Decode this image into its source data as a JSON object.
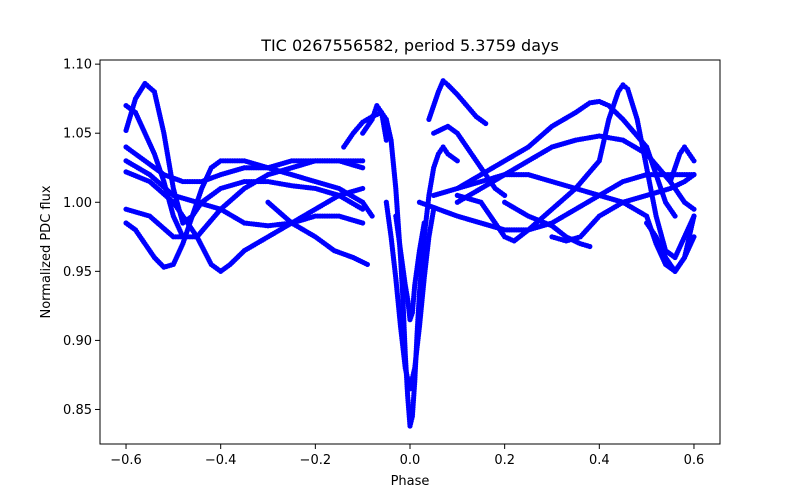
{
  "chart_data": {
    "type": "scatter",
    "title": "TIC 0267556582, period 5.3759 days",
    "xlabel": "Phase",
    "ylabel": "Normalized PDC flux",
    "xlim": [
      -0.655,
      0.655
    ],
    "ylim": [
      0.825,
      1.103
    ],
    "xticks": [
      -0.6,
      -0.4,
      -0.2,
      0.0,
      0.2,
      0.4,
      0.6
    ],
    "xtick_labels": [
      "−0.6",
      "−0.4",
      "−0.2",
      "0.0",
      "0.2",
      "0.4",
      "0.6"
    ],
    "yticks": [
      0.85,
      0.9,
      0.95,
      1.0,
      1.05,
      1.1
    ],
    "ytick_labels": [
      "0.85",
      "0.90",
      "0.95",
      "1.00",
      "1.05",
      "1.10"
    ],
    "grid": false,
    "marker_color": "#0000ff",
    "series": [
      {
        "values": [
          [
            -0.6,
            1.052
          ],
          [
            -0.58,
            1.075
          ],
          [
            -0.56,
            1.086
          ],
          [
            -0.54,
            1.08
          ],
          [
            -0.52,
            1.05
          ],
          [
            -0.5,
            1.01
          ],
          [
            -0.48,
            0.985
          ],
          [
            -0.46,
            0.99
          ],
          [
            -0.44,
            1.01
          ],
          [
            -0.42,
            1.025
          ],
          [
            -0.4,
            1.03
          ],
          [
            -0.35,
            1.03
          ],
          [
            -0.3,
            1.025
          ],
          [
            -0.25,
            1.02
          ],
          [
            -0.2,
            1.015
          ],
          [
            -0.15,
            1.01
          ],
          [
            -0.1,
            1.0
          ],
          [
            -0.08,
            0.99
          ]
        ]
      },
      {
        "values": [
          [
            -0.6,
            0.985
          ],
          [
            -0.58,
            0.98
          ],
          [
            -0.56,
            0.97
          ],
          [
            -0.54,
            0.96
          ],
          [
            -0.52,
            0.953
          ],
          [
            -0.5,
            0.955
          ],
          [
            -0.48,
            0.97
          ],
          [
            -0.46,
            0.99
          ],
          [
            -0.44,
            1.0
          ],
          [
            -0.42,
            1.005
          ],
          [
            -0.4,
            1.01
          ],
          [
            -0.35,
            1.015
          ],
          [
            -0.3,
            1.015
          ],
          [
            -0.25,
            1.012
          ],
          [
            -0.2,
            1.01
          ],
          [
            -0.15,
            1.005
          ],
          [
            -0.1,
            0.995
          ]
        ]
      },
      {
        "values": [
          [
            -0.6,
            1.022
          ],
          [
            -0.55,
            1.015
          ],
          [
            -0.5,
            1.0
          ],
          [
            -0.48,
            0.99
          ],
          [
            -0.45,
            0.975
          ],
          [
            -0.42,
            0.955
          ],
          [
            -0.4,
            0.95
          ],
          [
            -0.38,
            0.955
          ],
          [
            -0.35,
            0.965
          ],
          [
            -0.3,
            0.975
          ],
          [
            -0.25,
            0.985
          ],
          [
            -0.2,
            0.99
          ],
          [
            -0.15,
            0.99
          ],
          [
            -0.1,
            0.985
          ]
        ]
      },
      {
        "values": [
          [
            -0.6,
            1.03
          ],
          [
            -0.55,
            1.02
          ],
          [
            -0.5,
            1.005
          ],
          [
            -0.45,
            1.0
          ],
          [
            -0.4,
            0.995
          ],
          [
            -0.35,
            0.985
          ],
          [
            -0.3,
            0.983
          ],
          [
            -0.25,
            0.985
          ],
          [
            -0.2,
            0.995
          ],
          [
            -0.15,
            1.005
          ],
          [
            -0.1,
            1.01
          ]
        ]
      },
      {
        "values": [
          [
            -0.6,
            0.995
          ],
          [
            -0.55,
            0.99
          ],
          [
            -0.5,
            0.975
          ],
          [
            -0.45,
            0.975
          ],
          [
            -0.4,
            0.995
          ],
          [
            -0.35,
            1.01
          ],
          [
            -0.3,
            1.02
          ],
          [
            -0.25,
            1.025
          ],
          [
            -0.2,
            1.03
          ],
          [
            -0.15,
            1.03
          ],
          [
            -0.1,
            1.03
          ]
        ]
      },
      {
        "values": [
          [
            -0.6,
            1.07
          ],
          [
            -0.58,
            1.065
          ],
          [
            -0.56,
            1.05
          ],
          [
            -0.54,
            1.035
          ],
          [
            -0.52,
            1.015
          ],
          [
            -0.5,
            0.99
          ],
          [
            -0.48,
            0.975
          ]
        ]
      },
      {
        "values": [
          [
            -0.6,
            1.04
          ],
          [
            -0.56,
            1.03
          ],
          [
            -0.52,
            1.02
          ],
          [
            -0.48,
            1.015
          ],
          [
            -0.44,
            1.015
          ],
          [
            -0.4,
            1.02
          ],
          [
            -0.35,
            1.025
          ],
          [
            -0.3,
            1.025
          ],
          [
            -0.25,
            1.03
          ],
          [
            -0.2,
            1.03
          ],
          [
            -0.15,
            1.03
          ],
          [
            -0.1,
            1.025
          ]
        ]
      },
      {
        "values": [
          [
            -0.3,
            1.0
          ],
          [
            -0.25,
            0.985
          ],
          [
            -0.2,
            0.975
          ],
          [
            -0.16,
            0.965
          ],
          [
            -0.12,
            0.96
          ],
          [
            -0.09,
            0.955
          ]
        ]
      },
      {
        "values": [
          [
            -0.14,
            1.04
          ],
          [
            -0.12,
            1.05
          ],
          [
            -0.1,
            1.058
          ],
          [
            -0.08,
            1.062
          ],
          [
            -0.06,
            1.065
          ],
          [
            -0.05,
            1.06
          ],
          [
            -0.04,
            1.045
          ],
          [
            -0.03,
            1.01
          ],
          [
            -0.02,
            0.96
          ],
          [
            -0.015,
            0.93
          ],
          [
            -0.01,
            0.89
          ],
          [
            -0.005,
            0.86
          ],
          [
            0.0,
            0.838
          ],
          [
            0.005,
            0.845
          ],
          [
            0.01,
            0.87
          ],
          [
            0.015,
            0.905
          ],
          [
            0.02,
            0.935
          ],
          [
            0.03,
            0.975
          ],
          [
            0.04,
            1.005
          ],
          [
            0.05,
            1.025
          ],
          [
            0.06,
            1.035
          ],
          [
            0.07,
            1.04
          ],
          [
            0.08,
            1.035
          ],
          [
            0.1,
            1.03
          ]
        ]
      },
      {
        "values": [
          [
            -0.1,
            1.05
          ],
          [
            -0.08,
            1.06
          ],
          [
            -0.07,
            1.07
          ],
          [
            -0.06,
            1.065
          ],
          [
            -0.05,
            1.045
          ]
        ]
      },
      {
        "values": [
          [
            -0.03,
            0.99
          ],
          [
            -0.02,
            0.965
          ],
          [
            -0.01,
            0.94
          ],
          [
            -0.005,
            0.93
          ],
          [
            0.0,
            0.915
          ],
          [
            0.005,
            0.92
          ],
          [
            0.01,
            0.94
          ],
          [
            0.02,
            0.965
          ],
          [
            0.03,
            0.985
          ]
        ]
      },
      {
        "values": [
          [
            -0.05,
            1.0
          ],
          [
            -0.04,
            0.975
          ],
          [
            -0.03,
            0.945
          ],
          [
            -0.02,
            0.91
          ],
          [
            -0.01,
            0.88
          ],
          [
            0.0,
            0.865
          ],
          [
            0.01,
            0.88
          ],
          [
            0.02,
            0.91
          ],
          [
            0.03,
            0.945
          ],
          [
            0.04,
            0.975
          ],
          [
            0.05,
            0.995
          ]
        ]
      },
      {
        "values": [
          [
            0.04,
            1.06
          ],
          [
            0.06,
            1.08
          ],
          [
            0.07,
            1.088
          ],
          [
            0.08,
            1.085
          ],
          [
            0.1,
            1.078
          ],
          [
            0.12,
            1.07
          ],
          [
            0.14,
            1.062
          ],
          [
            0.16,
            1.057
          ]
        ]
      },
      {
        "values": [
          [
            0.05,
            1.05
          ],
          [
            0.08,
            1.055
          ],
          [
            0.1,
            1.05
          ],
          [
            0.12,
            1.04
          ],
          [
            0.14,
            1.03
          ],
          [
            0.16,
            1.02
          ],
          [
            0.18,
            1.01
          ],
          [
            0.2,
            1.005
          ]
        ]
      },
      {
        "values": [
          [
            0.02,
            1.0
          ],
          [
            0.06,
            0.995
          ],
          [
            0.1,
            0.99
          ],
          [
            0.15,
            0.985
          ],
          [
            0.2,
            0.98
          ],
          [
            0.25,
            0.98
          ],
          [
            0.3,
            0.985
          ],
          [
            0.35,
            0.995
          ],
          [
            0.4,
            1.005
          ],
          [
            0.45,
            1.015
          ],
          [
            0.5,
            1.02
          ],
          [
            0.55,
            1.02
          ],
          [
            0.6,
            1.02
          ]
        ]
      },
      {
        "values": [
          [
            0.1,
            1.005
          ],
          [
            0.15,
            1.0
          ],
          [
            0.18,
            0.985
          ],
          [
            0.2,
            0.975
          ],
          [
            0.22,
            0.972
          ],
          [
            0.25,
            0.98
          ],
          [
            0.3,
            0.995
          ],
          [
            0.35,
            1.01
          ],
          [
            0.4,
            1.03
          ],
          [
            0.42,
            1.06
          ],
          [
            0.44,
            1.08
          ],
          [
            0.45,
            1.085
          ],
          [
            0.46,
            1.082
          ],
          [
            0.48,
            1.06
          ],
          [
            0.5,
            1.025
          ],
          [
            0.52,
            0.99
          ],
          [
            0.54,
            0.965
          ],
          [
            0.56,
            0.96
          ],
          [
            0.58,
            0.975
          ],
          [
            0.6,
            0.99
          ]
        ]
      },
      {
        "values": [
          [
            0.1,
            1.01
          ],
          [
            0.15,
            1.02
          ],
          [
            0.2,
            1.03
          ],
          [
            0.25,
            1.04
          ],
          [
            0.3,
            1.055
          ],
          [
            0.35,
            1.065
          ],
          [
            0.38,
            1.072
          ],
          [
            0.4,
            1.073
          ],
          [
            0.42,
            1.07
          ],
          [
            0.45,
            1.06
          ],
          [
            0.5,
            1.04
          ],
          [
            0.52,
            1.02
          ],
          [
            0.54,
            1.0
          ],
          [
            0.56,
            0.99
          ]
        ]
      },
      {
        "values": [
          [
            0.1,
            1.0
          ],
          [
            0.15,
            1.01
          ],
          [
            0.2,
            1.02
          ],
          [
            0.25,
            1.03
          ],
          [
            0.3,
            1.04
          ],
          [
            0.35,
            1.045
          ],
          [
            0.4,
            1.048
          ],
          [
            0.45,
            1.045
          ],
          [
            0.5,
            1.035
          ],
          [
            0.55,
            1.015
          ],
          [
            0.58,
            1.0
          ],
          [
            0.6,
            0.995
          ]
        ]
      },
      {
        "values": [
          [
            0.05,
            1.005
          ],
          [
            0.1,
            1.01
          ],
          [
            0.15,
            1.015
          ],
          [
            0.2,
            1.02
          ],
          [
            0.25,
            1.02
          ],
          [
            0.3,
            1.015
          ],
          [
            0.35,
            1.01
          ],
          [
            0.4,
            1.005
          ],
          [
            0.45,
            1.0
          ],
          [
            0.5,
            0.99
          ],
          [
            0.52,
            0.97
          ],
          [
            0.54,
            0.955
          ],
          [
            0.56,
            0.95
          ],
          [
            0.58,
            0.96
          ],
          [
            0.6,
            0.975
          ]
        ]
      },
      {
        "values": [
          [
            0.3,
            0.975
          ],
          [
            0.33,
            0.972
          ],
          [
            0.36,
            0.975
          ],
          [
            0.4,
            0.99
          ],
          [
            0.45,
            1.0
          ],
          [
            0.5,
            1.005
          ],
          [
            0.55,
            1.01
          ],
          [
            0.58,
            1.015
          ],
          [
            0.6,
            1.02
          ]
        ]
      },
      {
        "values": [
          [
            0.2,
            1.0
          ],
          [
            0.25,
            0.99
          ],
          [
            0.3,
            0.983
          ],
          [
            0.33,
            0.975
          ],
          [
            0.36,
            0.97
          ],
          [
            0.38,
            0.968
          ]
        ]
      },
      {
        "values": [
          [
            0.5,
            0.985
          ],
          [
            0.52,
            0.975
          ],
          [
            0.54,
            0.96
          ],
          [
            0.56,
            0.95
          ],
          [
            0.58,
            0.96
          ],
          [
            0.6,
            0.99
          ]
        ]
      },
      {
        "values": [
          [
            0.55,
            1.015
          ],
          [
            0.57,
            1.035
          ],
          [
            0.58,
            1.04
          ],
          [
            0.59,
            1.035
          ],
          [
            0.6,
            1.03
          ]
        ]
      }
    ]
  }
}
